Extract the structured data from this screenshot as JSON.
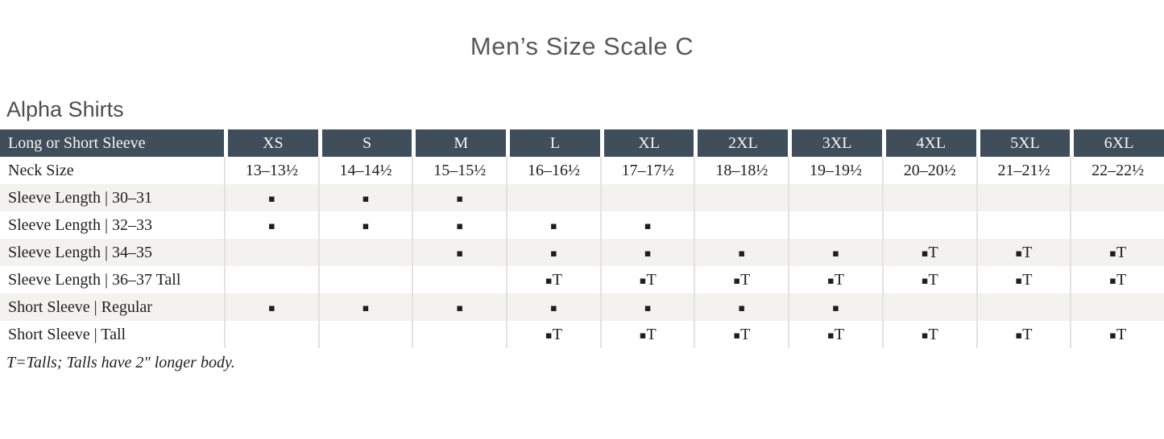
{
  "title": "Men’s Size Scale C",
  "section_heading": "Alpha Shirts",
  "footnote": "T=Talls; Talls have 2″ longer body.",
  "legend": {
    "dot_marker": "▪",
    "tall_marker": "▪T"
  },
  "colors": {
    "header_bg": "#3f4e5a",
    "header_text": "#f6f6f4",
    "stripe_bg": "#f4f2ef",
    "separator": "#e4e2de",
    "title_text": "#595959"
  },
  "table": {
    "header": {
      "label": "Long or Short Sleeve",
      "sizes": [
        "XS",
        "S",
        "M",
        "L",
        "XL",
        "2XL",
        "3XL",
        "4XL",
        "5XL",
        "6XL"
      ]
    },
    "rows": [
      {
        "label": "Neck Size",
        "striped": false,
        "cells": [
          "13–13½",
          "14–14½",
          "15–15½",
          "16–16½",
          "17–17½",
          "18–18½",
          "19–19½",
          "20–20½",
          "21–21½",
          "22–22½"
        ]
      },
      {
        "label": "Sleeve Length  |  30–31",
        "striped": true,
        "cells": [
          "▪",
          "▪",
          "▪",
          "",
          "",
          "",
          "",
          "",
          "",
          ""
        ]
      },
      {
        "label": "Sleeve Length  |  32–33",
        "striped": false,
        "cells": [
          "▪",
          "▪",
          "▪",
          "▪",
          "▪",
          "",
          "",
          "",
          "",
          ""
        ]
      },
      {
        "label": "Sleeve Length  |  34–35",
        "striped": true,
        "cells": [
          "",
          "",
          "▪",
          "▪",
          "▪",
          "▪",
          "▪",
          "▪T",
          "▪T",
          "▪T"
        ]
      },
      {
        "label": "Sleeve Length  |  36–37 Tall",
        "striped": false,
        "cells": [
          "",
          "",
          "",
          "▪T",
          "▪T",
          "▪T",
          "▪T",
          "▪T",
          "▪T",
          "▪T"
        ]
      },
      {
        "label": "Short Sleeve  |  Regular",
        "striped": true,
        "cells": [
          "▪",
          "▪",
          "▪",
          "▪",
          "▪",
          "▪",
          "▪",
          "",
          "",
          ""
        ]
      },
      {
        "label": "Short Sleeve  |  Tall",
        "striped": false,
        "cells": [
          "",
          "",
          "",
          "▪T",
          "▪T",
          "▪T",
          "▪T",
          "▪T",
          "▪T",
          "▪T"
        ]
      }
    ]
  }
}
